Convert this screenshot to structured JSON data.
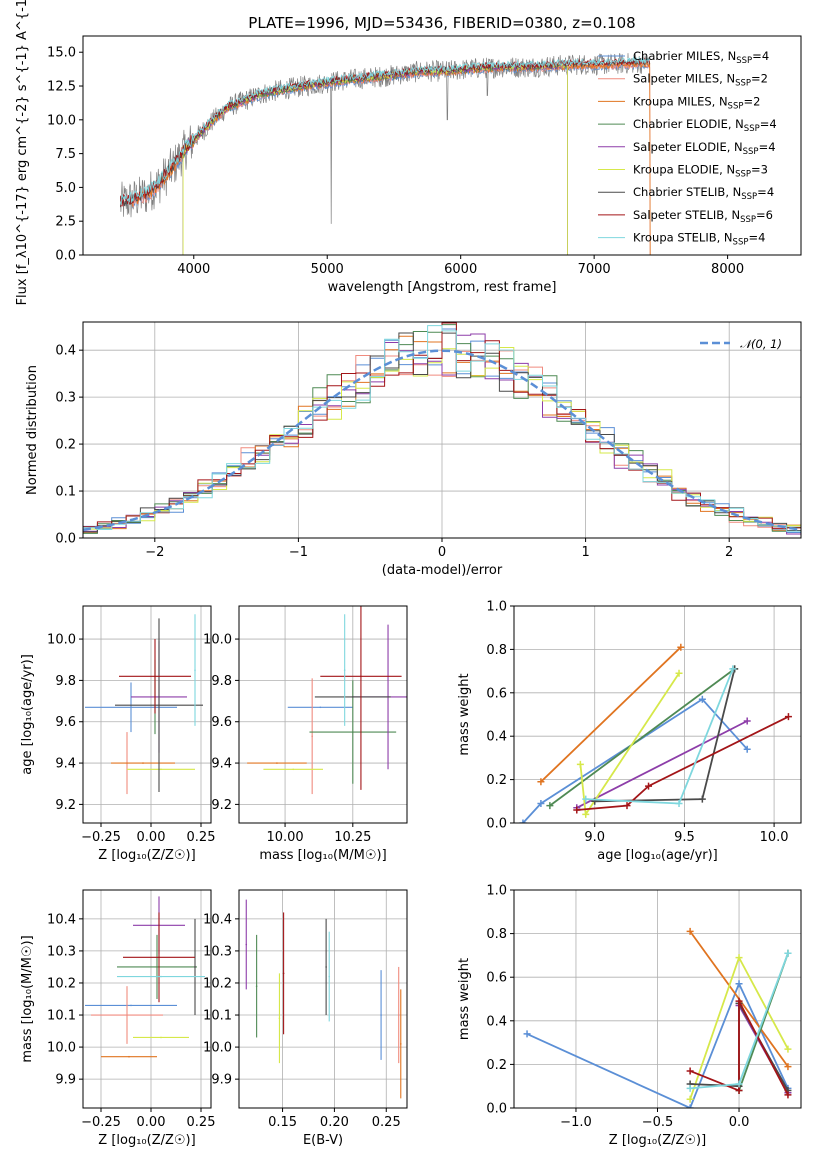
{
  "colors": {
    "Chabrier MILES": "#5b8fd6",
    "Salpeter MILES": "#f08b7f",
    "Kroupa MILES": "#e07420",
    "Chabrier ELODIE": "#4f8a54",
    "Salpeter ELODIE": "#8d3da9",
    "Kroupa ELODIE": "#d6e84a",
    "Chabrier STELIB": "#4a4a4a",
    "Salpeter STELIB": "#a31518",
    "Kroupa STELIB": "#7fd7de",
    "spectrum": "#808080",
    "normal_curve": "#5b8fd6"
  },
  "chart_data": [
    {
      "id": "spectrum",
      "type": "line",
      "title": "PLATE=1996, MJD=53436, FIBERID=0380, z=0.108",
      "xlabel": "wavelength [Angstrom, rest frame]",
      "ylabel": "Flux [f_λ10^{-17} erg cm^{-2} s^{-1} A^{-1}]",
      "xlim": [
        3170,
        8550
      ],
      "ylim": [
        0,
        16.2
      ],
      "xticks": [
        "4000",
        "5000",
        "6000",
        "7000",
        "8000"
      ],
      "yticks": [
        "0.0",
        "2.5",
        "5.0",
        "7.5",
        "10.0",
        "12.5",
        "15.0"
      ],
      "grid": false,
      "legend_position": "top-right",
      "legend": [
        {
          "model": "Chabrier MILES",
          "sub": "SSP",
          "n": "4",
          "label": "Chabrier MILES, N"
        },
        {
          "model": "Salpeter MILES",
          "sub": "SSP",
          "n": "2",
          "label": "Salpeter MILES, N"
        },
        {
          "model": "Kroupa MILES",
          "sub": "SSP",
          "n": "2",
          "label": "Kroupa MILES, N"
        },
        {
          "model": "Chabrier ELODIE",
          "sub": "SSP",
          "n": "4",
          "label": "Chabrier ELODIE, N"
        },
        {
          "model": "Salpeter ELODIE",
          "sub": "SSP",
          "n": "4",
          "label": "Salpeter ELODIE, N"
        },
        {
          "model": "Kroupa ELODIE",
          "sub": "SSP",
          "n": "3",
          "label": "Kroupa ELODIE, N"
        },
        {
          "model": "Chabrier STELIB",
          "sub": "SSP",
          "n": "4",
          "label": "Chabrier STELIB, N"
        },
        {
          "model": "Salpeter STELIB",
          "sub": "SSP",
          "n": "6",
          "label": "Salpeter STELIB, N"
        },
        {
          "model": "Kroupa STELIB",
          "sub": "SSP",
          "n": "4",
          "label": "Kroupa STELIB, N"
        }
      ],
      "continuum": {
        "x": [
          3450,
          3550,
          3650,
          3750,
          3850,
          3950,
          4050,
          4150,
          4250,
          4350,
          4500,
          4700,
          4900,
          5100,
          5300,
          5500,
          5700,
          5900,
          6100,
          6300,
          6500,
          6700,
          6900,
          7100,
          7300,
          7420
        ],
        "y": [
          3.8,
          4.1,
          4.5,
          5.4,
          6.6,
          8.0,
          9.0,
          10.0,
          10.9,
          11.3,
          11.9,
          12.3,
          12.6,
          12.9,
          13.1,
          13.3,
          13.6,
          13.6,
          13.8,
          13.9,
          13.9,
          14.0,
          14.1,
          14.1,
          14.2,
          14.2
        ]
      }
    },
    {
      "id": "residuals",
      "type": "step",
      "xlabel": "(data-model)/error",
      "ylabel": "Normed distribution",
      "xlim": [
        -2.5,
        2.5
      ],
      "ylim": [
        0,
        0.46
      ],
      "xticks": [
        "−2",
        "−1",
        "0",
        "1",
        "2"
      ],
      "yticks": [
        "0.0",
        "0.1",
        "0.2",
        "0.3",
        "0.4"
      ],
      "grid": true,
      "legend_position": "top-right",
      "legend": [
        {
          "label": "𝒩(0, 1)",
          "style": "dashed"
        }
      ],
      "bin_width": 0.1,
      "curve": "normal pdf, mean 0, sigma 1"
    },
    {
      "id": "age-vs-Z",
      "type": "errorbar",
      "xlabel": "Z [log₁₀(Z/Z☉)]",
      "ylabel": "age  [log₁₀(age/yr)]",
      "xlim": [
        -0.34,
        0.3
      ],
      "ylim": [
        9.11,
        10.16
      ],
      "xticks": [
        "−0.25",
        "0.00",
        "0.25"
      ],
      "yticks": [
        "9.2",
        "9.4",
        "9.6",
        "9.8",
        "10.0"
      ],
      "grid": true,
      "points": [
        {
          "model": "Chabrier MILES",
          "x": -0.1,
          "xerr": 0.23,
          "y": 9.67,
          "yerr": 0.12
        },
        {
          "model": "Salpeter MILES",
          "x": -0.12,
          "xerr": 0.0,
          "y": 9.4,
          "yerr": 0.15
        },
        {
          "model": "Kroupa MILES",
          "x": -0.04,
          "xerr": 0.16,
          "y": 9.4,
          "yerr": 0.0
        },
        {
          "model": "Chabrier ELODIE",
          "x": 0.02,
          "xerr": 0.0,
          "y": 9.72,
          "yerr": 0.18
        },
        {
          "model": "Salpeter ELODIE",
          "x": 0.04,
          "xerr": 0.14,
          "y": 9.72,
          "yerr": 0.27
        },
        {
          "model": "Kroupa ELODIE",
          "x": 0.05,
          "xerr": 0.17,
          "y": 9.37,
          "yerr": 0.0
        },
        {
          "model": "Chabrier STELIB",
          "x": 0.04,
          "xerr": 0.22,
          "y": 9.68,
          "yerr": 0.42
        },
        {
          "model": "Salpeter STELIB",
          "x": 0.02,
          "xerr": 0.18,
          "y": 9.82,
          "yerr": 0.18
        },
        {
          "model": "Kroupa STELIB",
          "x": 0.22,
          "xerr": 0.0,
          "y": 9.85,
          "yerr": 0.27
        }
      ]
    },
    {
      "id": "age-vs-mass",
      "type": "errorbar",
      "xlabel": "mass [log₁₀(M/M☉)]",
      "ylabel": "",
      "xlim": [
        9.83,
        10.45
      ],
      "ylim": [
        9.11,
        10.16
      ],
      "xticks": [
        "10.00",
        "10.25"
      ],
      "yticks": [
        "9.2",
        "9.4",
        "9.6",
        "9.8",
        "10.0"
      ],
      "grid": true,
      "points": [
        {
          "model": "Chabrier MILES",
          "x": 10.13,
          "xerr": 0.12,
          "y": 9.67,
          "yerr": 0.0
        },
        {
          "model": "Salpeter MILES",
          "x": 10.1,
          "xerr": 0.0,
          "y": 9.53,
          "yerr": 0.28
        },
        {
          "model": "Kroupa MILES",
          "x": 9.97,
          "xerr": 0.11,
          "y": 9.4,
          "yerr": 0.0
        },
        {
          "model": "Chabrier ELODIE",
          "x": 10.25,
          "xerr": 0.16,
          "y": 9.55,
          "yerr": 0.25
        },
        {
          "model": "Salpeter ELODIE",
          "x": 10.38,
          "xerr": 0.13,
          "y": 9.72,
          "yerr": 0.35
        },
        {
          "model": "Kroupa ELODIE",
          "x": 10.03,
          "xerr": 0.11,
          "y": 9.37,
          "yerr": 0.0
        },
        {
          "model": "Chabrier STELIB",
          "x": 10.25,
          "xerr": 0.14,
          "y": 9.72,
          "yerr": 0.0
        },
        {
          "model": "Salpeter STELIB",
          "x": 10.28,
          "xerr": 0.15,
          "y": 9.82,
          "yerr": 0.55
        },
        {
          "model": "Kroupa STELIB",
          "x": 10.22,
          "xerr": 0.0,
          "y": 9.85,
          "yerr": 0.27
        }
      ]
    },
    {
      "id": "massweight-vs-age",
      "type": "line",
      "xlabel": "age  [log₁₀(age/yr)]",
      "ylabel": "mass weight",
      "xlim": [
        8.55,
        10.15
      ],
      "ylim": [
        0.0,
        1.0
      ],
      "xticks": [
        "9.0",
        "9.5",
        "10.0"
      ],
      "yticks": [
        "0.0",
        "0.2",
        "0.4",
        "0.6",
        "0.8",
        "1.0"
      ],
      "grid": true,
      "series": [
        {
          "model": "Chabrier MILES",
          "x": [
            8.6,
            8.7,
            9.6,
            9.85
          ],
          "y": [
            0.0,
            0.09,
            0.57,
            0.34
          ]
        },
        {
          "model": "Kroupa MILES",
          "x": [
            8.7,
            9.48
          ],
          "y": [
            0.19,
            0.81
          ]
        },
        {
          "model": "Chabrier ELODIE",
          "x": [
            8.75,
            9.78
          ],
          "y": [
            0.08,
            0.71
          ]
        },
        {
          "model": "Salpeter ELODIE",
          "x": [
            8.9,
            9.85
          ],
          "y": [
            0.07,
            0.47
          ]
        },
        {
          "model": "Kroupa ELODIE",
          "x": [
            8.92,
            8.95,
            9.47
          ],
          "y": [
            0.27,
            0.04,
            0.69
          ]
        },
        {
          "model": "Chabrier STELIB",
          "x": [
            9.0,
            9.6,
            9.78
          ],
          "y": [
            0.1,
            0.11,
            0.71
          ]
        },
        {
          "model": "Salpeter STELIB",
          "x": [
            8.9,
            9.18,
            9.3,
            10.08
          ],
          "y": [
            0.06,
            0.08,
            0.17,
            0.49
          ]
        },
        {
          "model": "Kroupa STELIB",
          "x": [
            8.95,
            9.47,
            9.77
          ],
          "y": [
            0.11,
            0.09,
            0.71
          ]
        }
      ]
    },
    {
      "id": "mass-vs-Z",
      "type": "errorbar",
      "xlabel": "Z [log₁₀(Z/Z☉)]",
      "ylabel": "mass [log₁₀(M/M☉)]",
      "xlim": [
        -0.34,
        0.3
      ],
      "ylim": [
        9.81,
        10.49
      ],
      "xticks": [
        "−0.25",
        "0.00",
        "0.25"
      ],
      "yticks": [
        "9.9",
        "10.0",
        "10.1",
        "10.2",
        "10.3",
        "10.4"
      ],
      "grid": true,
      "points": [
        {
          "model": "Chabrier MILES",
          "x": -0.1,
          "xerr": 0.23,
          "y": 10.13,
          "yerr": 0.0
        },
        {
          "model": "Salpeter MILES",
          "x": -0.12,
          "xerr": 0.18,
          "y": 10.1,
          "yerr": 0.09
        },
        {
          "model": "Kroupa MILES",
          "x": -0.11,
          "xerr": 0.14,
          "y": 9.97,
          "yerr": 0.0
        },
        {
          "model": "Chabrier ELODIE",
          "x": 0.03,
          "xerr": 0.2,
          "y": 10.25,
          "yerr": 0.1
        },
        {
          "model": "Salpeter ELODIE",
          "x": 0.04,
          "xerr": 0.13,
          "y": 10.38,
          "yerr": 0.09
        },
        {
          "model": "Kroupa ELODIE",
          "x": 0.05,
          "xerr": 0.14,
          "y": 10.03,
          "yerr": 0.0
        },
        {
          "model": "Chabrier STELIB",
          "x": 0.22,
          "xerr": 0.0,
          "y": 10.25,
          "yerr": 0.15
        },
        {
          "model": "Salpeter STELIB",
          "x": 0.04,
          "xerr": 0.18,
          "y": 10.28,
          "yerr": 0.14
        },
        {
          "model": "Kroupa STELIB",
          "x": 0.05,
          "xerr": 0.22,
          "y": 10.22,
          "yerr": 0.0
        }
      ]
    },
    {
      "id": "mass-vs-ebv",
      "type": "errorbar",
      "xlabel": "E(B-V)",
      "ylabel": "",
      "xlim": [
        0.108,
        0.27
      ],
      "ylim": [
        9.81,
        10.49
      ],
      "xticks": [
        "0.15",
        "0.20",
        "0.25"
      ],
      "yticks": [
        "9.9",
        "10.0",
        "10.1",
        "10.2",
        "10.3",
        "10.4"
      ],
      "grid": true,
      "points": [
        {
          "model": "Chabrier MILES",
          "x": 0.245,
          "xerr": 0.0,
          "y": 10.1,
          "yerr": 0.14
        },
        {
          "model": "Salpeter MILES",
          "x": 0.262,
          "xerr": 0.0,
          "y": 10.1,
          "yerr": 0.15
        },
        {
          "model": "Kroupa MILES",
          "x": 0.264,
          "xerr": 0.0,
          "y": 10.01,
          "yerr": 0.17
        },
        {
          "model": "Chabrier ELODIE",
          "x": 0.125,
          "xerr": 0.0,
          "y": 10.19,
          "yerr": 0.16
        },
        {
          "model": "Salpeter ELODIE",
          "x": 0.115,
          "xerr": 0.0,
          "y": 10.32,
          "yerr": 0.14
        },
        {
          "model": "Kroupa ELODIE",
          "x": 0.147,
          "xerr": 0.0,
          "y": 10.09,
          "yerr": 0.14
        },
        {
          "model": "Chabrier STELIB",
          "x": 0.192,
          "xerr": 0.0,
          "y": 10.25,
          "yerr": 0.15
        },
        {
          "model": "Salpeter STELIB",
          "x": 0.151,
          "xerr": 0.0,
          "y": 10.23,
          "yerr": 0.19
        },
        {
          "model": "Kroupa STELIB",
          "x": 0.195,
          "xerr": 0.0,
          "y": 10.22,
          "yerr": 0.14
        }
      ]
    },
    {
      "id": "massweight-vs-Z",
      "type": "line",
      "xlabel": "Z [log₁₀(Z/Z☉)]",
      "ylabel": "mass weight",
      "xlim": [
        -1.38,
        0.38
      ],
      "ylim": [
        0.0,
        1.0
      ],
      "xticks": [
        "−1.0",
        "−0.5",
        "0.0"
      ],
      "yticks": [
        "0.0",
        "0.2",
        "0.4",
        "0.6",
        "0.8",
        "1.0"
      ],
      "grid": true,
      "series": [
        {
          "model": "Chabrier MILES",
          "x": [
            -1.3,
            -0.3,
            0.0,
            0.3
          ],
          "y": [
            0.34,
            0.0,
            0.57,
            0.09
          ]
        },
        {
          "model": "Kroupa MILES",
          "x": [
            -0.3,
            0.3
          ],
          "y": [
            0.81,
            0.19
          ]
        },
        {
          "model": "Kroupa ELODIE",
          "x": [
            -0.3,
            0.0,
            0.3
          ],
          "y": [
            0.04,
            0.69,
            0.27
          ]
        },
        {
          "model": "Chabrier ELODIE",
          "x": [
            0.0,
            0.3
          ],
          "y": [
            0.08,
            0.71
          ]
        },
        {
          "model": "Salpeter ELODIE",
          "x": [
            0.0,
            0.3
          ],
          "y": [
            0.47,
            0.07
          ]
        },
        {
          "model": "Chabrier STELIB",
          "x": [
            -0.3,
            0.0,
            0.0,
            0.3
          ],
          "y": [
            0.11,
            0.1,
            0.48,
            0.08
          ]
        },
        {
          "model": "Salpeter STELIB",
          "x": [
            -0.3,
            0.0,
            0.0,
            0.3
          ],
          "y": [
            0.17,
            0.08,
            0.49,
            0.06
          ]
        },
        {
          "model": "Kroupa STELIB",
          "x": [
            -0.3,
            0.0,
            0.3
          ],
          "y": [
            0.09,
            0.11,
            0.71
          ]
        }
      ]
    }
  ]
}
